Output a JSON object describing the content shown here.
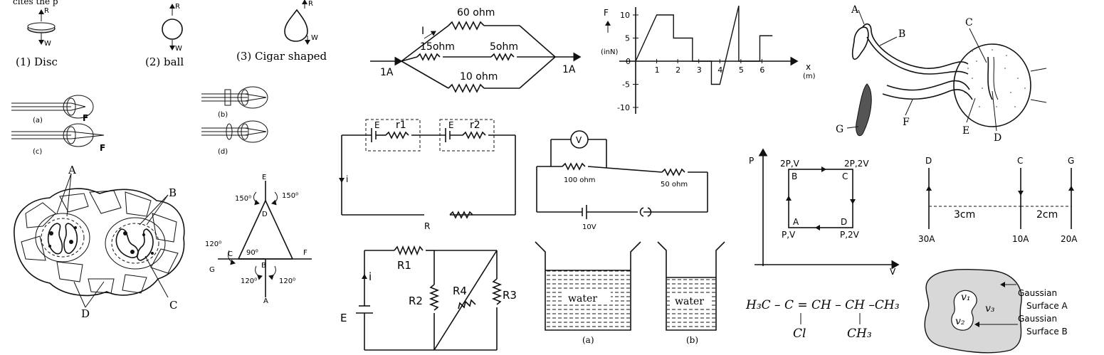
{
  "top_clip": "cites the p",
  "shapes": {
    "disc": "(1)  Disc",
    "ball": "(2)  ball",
    "cigar": "(3)  Cigar shaped",
    "r": "R",
    "w": "W"
  },
  "eyes": {
    "a": "(a)",
    "b": "(b)",
    "c": "(c)",
    "d": "(d)",
    "f": "F"
  },
  "cells": {
    "a": "A",
    "b": "B",
    "c": "C",
    "d": "D"
  },
  "angles": {
    "e": "E",
    "d": "D",
    "c": "C",
    "b": "B",
    "g": "G",
    "f": "F",
    "a": "A",
    "a150": "150⁰",
    "a150b": "150⁰",
    "a120l": "120⁰",
    "a90": "90⁰",
    "a120bl": "120⁰",
    "a120br": "120⁰"
  },
  "parallel": {
    "r60": "60 ohm",
    "r15": "15ohm",
    "r5": "5ohm",
    "r10": "10 ohm",
    "i": "I",
    "in": "1A",
    "out": "1A"
  },
  "cells_series": {
    "e1": "E",
    "r1": "r1",
    "e2": "E",
    "r2": "r2",
    "i": "i",
    "r": "R"
  },
  "voltmeter": {
    "v": "V",
    "r100": "100 ohm",
    "r50": "50 ohm",
    "bat": "10V"
  },
  "bridge": {
    "e": "E",
    "i": "i",
    "r1": "R1",
    "r2": "R2",
    "r3": "R3",
    "r4": "R4"
  },
  "beakers": {
    "w1": "water",
    "w2": "water",
    "a": "(a)",
    "b": "(b)"
  },
  "chart": {
    "y_label": "F",
    "y_unit": "(inN)",
    "x_label": "x",
    "x_unit": "(m)"
  },
  "chart_data": {
    "type": "line",
    "title": "",
    "xlabel": "x (m)",
    "ylabel": "F (inN)",
    "x_ticks": [
      "0",
      "1",
      "2",
      "3",
      "4",
      "5",
      "6"
    ],
    "y_ticks": [
      "10",
      "5",
      "0",
      "-5",
      "-10"
    ],
    "xlim": [
      0,
      7
    ],
    "ylim": [
      -11,
      11
    ],
    "series": [
      {
        "name": "F",
        "x": [
          0,
          1,
          1.8,
          1.8,
          2.7,
          2.7,
          3.6,
          3.6,
          4.0,
          4.9,
          4.9,
          5.9,
          5.9,
          6.5
        ],
        "y": [
          0,
          10,
          10,
          5,
          5,
          0,
          0,
          -5,
          -5,
          12,
          0,
          0,
          5.5,
          5.5
        ]
      }
    ]
  },
  "nerve": {
    "a": "A",
    "b": "B",
    "c": "C",
    "d": "D",
    "e": "E",
    "f": "F",
    "g": "G"
  },
  "pv": {
    "p": "P",
    "v": "V",
    "b": "2P,V",
    "c": "2P,2V",
    "a": "P,V",
    "d": "P,2V",
    "lb": "B",
    "lc": "C",
    "la": "A",
    "ld": "D"
  },
  "wires": {
    "d": "D",
    "c": "C",
    "g": "G",
    "d1": "3cm",
    "d2": "2cm",
    "i1": "30A",
    "i2": "10A",
    "i3": "20A"
  },
  "chem": {
    "formula": "H₃C – C  = CH – CH  –CH₃",
    "cl": "Cl",
    "ch3": "CH₃"
  },
  "gauss": {
    "v1": "v₁",
    "v2": "v₂",
    "v3": "v₃",
    "ga": "Gaussian",
    "sa": "Surface A",
    "gb": "Gaussian",
    "sb": "Surface B"
  }
}
